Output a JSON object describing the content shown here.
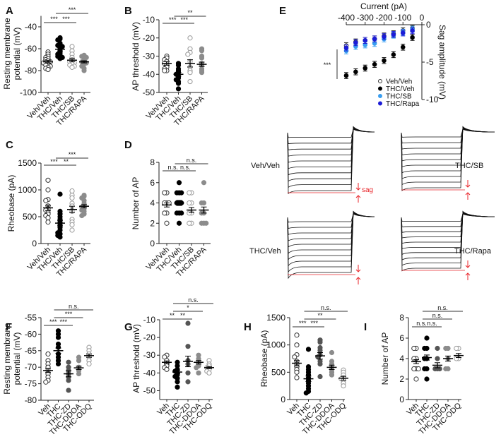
{
  "panel_letters": {
    "A": "A",
    "B": "B",
    "C": "C",
    "D": "D",
    "E": "E",
    "F": "F",
    "G": "G",
    "H": "H",
    "I": "I"
  },
  "chart_data": [
    {
      "id": "A",
      "type": "scatter",
      "ylabel": [
        "Resting membrane",
        "potential (mV)"
      ],
      "ylim": [
        -100,
        -30
      ],
      "yticks": [
        -40,
        -60,
        -80,
        -100
      ],
      "categories": [
        "Veh/Veh",
        "THC/Veh",
        "THC/SB",
        "THC/RAPA"
      ],
      "groups": [
        {
          "style": "open",
          "color": "#333333",
          "points": [
            -63,
            -65,
            -67,
            -68,
            -69,
            -70,
            -71,
            -72,
            -72,
            -73,
            -74,
            -75,
            -76,
            -77,
            -78,
            -79
          ],
          "mean": -72,
          "sem": 1.2
        },
        {
          "style": "filled",
          "color": "#000000",
          "points": [
            -50,
            -51,
            -52,
            -55,
            -56,
            -57,
            -58,
            -60,
            -62,
            -64,
            -65,
            -66,
            -67,
            -68,
            -69
          ],
          "mean": -60.5,
          "sem": 1.6
        },
        {
          "style": "open",
          "color": "#999999",
          "points": [
            -58,
            -62,
            -65,
            -68,
            -70,
            -71,
            -72,
            -73,
            -74,
            -75,
            -76,
            -77
          ],
          "mean": -70.5,
          "sem": 1.5
        },
        {
          "style": "filled",
          "color": "#8c8c8c",
          "points": [
            -66,
            -67,
            -68,
            -70,
            -71,
            -72,
            -73,
            -74,
            -76,
            -78,
            -80
          ],
          "mean": -72,
          "sem": 1
        }
      ],
      "significance": [
        {
          "from": 0,
          "to": 1,
          "label": "***",
          "level": 0
        },
        {
          "from": 1,
          "to": 2,
          "label": "***",
          "level": 0
        },
        {
          "from": 1,
          "to": 3,
          "label": "***",
          "level": 1
        }
      ]
    },
    {
      "id": "B",
      "type": "scatter",
      "ylabel": [
        "AP threshold (mV)"
      ],
      "ylim": [
        -50,
        -10
      ],
      "yticks": [
        -10,
        -20,
        -30,
        -40,
        -50
      ],
      "categories": [
        "Veh/Veh",
        "THC/Veh",
        "THC/SB",
        "THC/RAPA"
      ],
      "groups": [
        {
          "style": "open",
          "color": "#333333",
          "points": [
            -30,
            -31,
            -32,
            -33,
            -34,
            -35,
            -36,
            -37,
            -38,
            -38
          ],
          "mean": -34,
          "sem": 1
        },
        {
          "style": "filled",
          "color": "#000000",
          "points": [
            -34,
            -35,
            -37,
            -38,
            -39,
            -40,
            -41,
            -42,
            -43,
            -44,
            -45,
            -48
          ],
          "mean": -40,
          "sem": 1
        },
        {
          "style": "open",
          "color": "#999999",
          "points": [
            -20,
            -26,
            -28,
            -29,
            -33,
            -36,
            -38,
            -39,
            -44
          ],
          "mean": -34,
          "sem": 2
        },
        {
          "style": "filled",
          "color": "#8c8c8c",
          "points": [
            -26,
            -27,
            -30,
            -31,
            -34,
            -35,
            -37,
            -38,
            -39
          ],
          "mean": -34.5,
          "sem": 1.2
        }
      ],
      "significance": [
        {
          "from": 0,
          "to": 1,
          "label": "***",
          "level": 0
        },
        {
          "from": 1,
          "to": 2,
          "label": "***",
          "level": 0
        },
        {
          "from": 1,
          "to": 3,
          "label": "**",
          "level": 1
        }
      ]
    },
    {
      "id": "C",
      "type": "scatter",
      "ylabel": [
        "Rheobase (pA)"
      ],
      "ylim": [
        0,
        1500
      ],
      "yticks": [
        0,
        500,
        1000,
        1500
      ],
      "categories": [
        "Veh/Veh",
        "THC/Veh",
        "THC/SB",
        "THC/RAPA"
      ],
      "groups": [
        {
          "style": "open",
          "color": "#333333",
          "points": [
            1180,
            1000,
            820,
            800,
            700,
            650,
            620,
            580,
            550,
            520,
            480,
            400
          ],
          "mean": 665,
          "sem": 50
        },
        {
          "style": "filled",
          "color": "#000000",
          "points": [
            920,
            600,
            550,
            500,
            450,
            400,
            350,
            300,
            250,
            200,
            180,
            150,
            120
          ],
          "mean": 380,
          "sem": 50
        },
        {
          "style": "open",
          "color": "#999999",
          "points": [
            980,
            900,
            850,
            750,
            700,
            620,
            600,
            450,
            400,
            350,
            250
          ],
          "mean": 635,
          "sem": 60
        },
        {
          "style": "filled",
          "color": "#8c8c8c",
          "points": [
            900,
            880,
            850,
            800,
            750,
            700,
            680,
            650,
            620,
            600,
            550,
            520
          ],
          "mean": 695,
          "sem": 30
        }
      ],
      "significance": [
        {
          "from": 0,
          "to": 1,
          "label": "***",
          "level": 0
        },
        {
          "from": 1,
          "to": 2,
          "label": "**",
          "level": 0
        },
        {
          "from": 1,
          "to": 3,
          "label": "***",
          "level": 1
        }
      ]
    },
    {
      "id": "D",
      "type": "scatter",
      "ylabel": [
        "Number of AP"
      ],
      "ylim": [
        0,
        8
      ],
      "yticks": [
        0,
        2,
        4,
        6,
        8
      ],
      "categories": [
        "Veh/Veh",
        "THC/Veh",
        "THC/SB",
        "THC/RAPA"
      ],
      "groups": [
        {
          "style": "open",
          "color": "#333333",
          "points": [
            5,
            5,
            4,
            4,
            4,
            3,
            3,
            2
          ],
          "mean": 3.8,
          "sem": 0.2
        },
        {
          "style": "filled",
          "color": "#000000",
          "points": [
            6,
            5,
            5,
            5,
            4,
            4,
            4,
            3,
            3,
            3,
            2
          ],
          "mean": 4.0,
          "sem": 0.25
        },
        {
          "style": "open",
          "color": "#999999",
          "points": [
            5,
            5,
            4,
            4,
            3,
            3,
            2,
            2
          ],
          "mean": 3.3,
          "sem": 0.25
        },
        {
          "style": "filled",
          "color": "#8c8c8c",
          "points": [
            6,
            4,
            4,
            3,
            3,
            2,
            2,
            2
          ],
          "mean": 3.3,
          "sem": 0.3
        }
      ],
      "significance": [
        {
          "from": 0,
          "to": 1,
          "label": "n.s.",
          "level": 0
        },
        {
          "from": 1,
          "to": 2,
          "label": "n.s.",
          "level": 0
        },
        {
          "from": 1,
          "to": 3,
          "label": "n.s.",
          "level": 1
        }
      ]
    },
    {
      "id": "E",
      "type": "scatter",
      "xlabel": "Current (pA)",
      "ylabel": "Sag amplitude (mV)",
      "xlim": [
        -400,
        0
      ],
      "ylim": [
        -10,
        0
      ],
      "xticks": [
        -400,
        -300,
        -200,
        -100,
        0
      ],
      "yticks": [
        0,
        -5,
        -10
      ],
      "x": [
        -400,
        -350,
        -300,
        -250,
        -200,
        -150,
        -100,
        -50
      ],
      "series": [
        {
          "name": "Veh/Veh",
          "style": "open",
          "color": "#333333",
          "values": [
            -2.8,
            -2.3,
            -2.1,
            -1.9,
            -1.5,
            -1.2,
            -0.8,
            -0.5
          ],
          "sem": 0.4
        },
        {
          "name": "THC/Veh",
          "style": "filled",
          "color": "#000000",
          "values": [
            -6.8,
            -6.3,
            -5.8,
            -5.3,
            -4.8,
            -4.0,
            -3.0,
            -1.7
          ],
          "sem": 0.4
        },
        {
          "name": "THC/SB",
          "style": "filled",
          "color": "#3a9ef0",
          "values": [
            -3.5,
            -2.9,
            -2.7,
            -2.5,
            -1.9,
            -1.4,
            -1.0,
            -0.6
          ],
          "sem": 0.4
        },
        {
          "name": "THC/Rapa",
          "style": "filled",
          "color": "#1c1cd6",
          "values": [
            -3.1,
            -2.4,
            -2.1,
            -1.9,
            -1.6,
            -1.3,
            -1.1,
            -0.8
          ],
          "sem": 0.4
        }
      ],
      "significance": [
        {
          "label": "***"
        }
      ],
      "legend": "bottom-right"
    },
    {
      "id": "F",
      "type": "scatter",
      "ylabel": [
        "Resting membrane",
        "potential (mV)"
      ],
      "ylim": [
        -80,
        -55
      ],
      "yticks": [
        -55,
        -60,
        -65,
        -70,
        -75,
        -80
      ],
      "categories": [
        "Veh",
        "THC",
        "THC-ZD",
        "THC-DDOA",
        "THC-ODQ"
      ],
      "groups": [
        {
          "style": "open",
          "color": "#333333",
          "points": [
            -66,
            -68,
            -69,
            -70,
            -71,
            -72,
            -73,
            -74,
            -74.5
          ],
          "mean": -71,
          "sem": 0.6
        },
        {
          "style": "filled",
          "color": "#000000",
          "points": [
            -59,
            -60,
            -61,
            -63,
            -64,
            -66,
            -67,
            -68,
            -69
          ],
          "mean": -65,
          "sem": 0.8
        },
        {
          "style": "filled",
          "color": "#555555",
          "points": [
            -68.5,
            -70,
            -71,
            -72,
            -73,
            -74,
            -77
          ],
          "mean": -72,
          "sem": 0.9
        },
        {
          "style": "filled",
          "color": "#8c8c8c",
          "points": [
            -67,
            -68,
            -70,
            -71,
            -72
          ],
          "mean": -70.2,
          "sem": 0.5
        },
        {
          "style": "open",
          "color": "#999999",
          "points": [
            -64,
            -65,
            -66,
            -67,
            -68,
            -69
          ],
          "mean": -66.5,
          "sem": 0.5
        }
      ],
      "significance": [
        {
          "from": 0,
          "to": 1,
          "label": "***",
          "level": 0
        },
        {
          "from": 1,
          "to": 2,
          "label": "***",
          "level": 0
        },
        {
          "from": 1,
          "to": 3,
          "label": "***",
          "level": 1
        },
        {
          "from": 1,
          "to": 4,
          "label": "n.s.",
          "level": 2
        }
      ]
    },
    {
      "id": "G",
      "type": "scatter",
      "ylabel": [
        "AP threshold (mV)"
      ],
      "ylim": [
        -55,
        -10
      ],
      "yticks": [
        -10,
        -20,
        -30,
        -40,
        -50
      ],
      "categories": [
        "Veh",
        "THC",
        "THC-ZD",
        "THC-DDOA",
        "THC-ODQ"
      ],
      "groups": [
        {
          "style": "open",
          "color": "#333333",
          "points": [
            -30,
            -31,
            -33,
            -35,
            -36,
            -37,
            -38
          ],
          "mean": -34,
          "sem": 0.8
        },
        {
          "style": "filled",
          "color": "#000000",
          "points": [
            -34,
            -36,
            -38,
            -39,
            -40,
            -41,
            -42,
            -43,
            -45,
            -48
          ],
          "mean": -39.5,
          "sem": 0.9
        },
        {
          "style": "filled",
          "color": "#555555",
          "points": [
            -12,
            -25,
            -33,
            -35,
            -40,
            -45
          ],
          "mean": -33.5,
          "sem": 3
        },
        {
          "style": "filled",
          "color": "#8c8c8c",
          "points": [
            -30,
            -32,
            -34,
            -35,
            -36,
            -37,
            -40
          ],
          "mean": -34,
          "sem": 1
        },
        {
          "style": "open",
          "color": "#999999",
          "points": [
            -33,
            -35,
            -36,
            -37,
            -38,
            -39,
            -40
          ],
          "mean": -37,
          "sem": 0.6
        }
      ],
      "significance": [
        {
          "from": 0,
          "to": 1,
          "label": "**",
          "level": 0
        },
        {
          "from": 1,
          "to": 2,
          "label": "**",
          "level": 0
        },
        {
          "from": 1,
          "to": 3,
          "label": "*",
          "level": 1
        },
        {
          "from": 1,
          "to": 4,
          "label": "n.s.",
          "level": 2
        }
      ]
    },
    {
      "id": "H",
      "type": "scatter",
      "ylabel": [
        "Rheobase (pA)"
      ],
      "ylim": [
        0,
        1500
      ],
      "yticks": [
        0,
        500,
        1000,
        1500
      ],
      "categories": [
        "Veh",
        "THC",
        "THC-ZD",
        "THC-DDOA",
        "THC-ODQ"
      ],
      "groups": [
        {
          "style": "open",
          "color": "#333333",
          "points": [
            1180,
            1000,
            820,
            780,
            700,
            650,
            600,
            550,
            500,
            400
          ],
          "mean": 665,
          "sem": 50
        },
        {
          "style": "filled",
          "color": "#000000",
          "points": [
            920,
            600,
            550,
            500,
            450,
            400,
            350,
            300,
            250,
            200,
            150,
            120
          ],
          "mean": 380,
          "sem": 50
        },
        {
          "style": "filled",
          "color": "#555555",
          "points": [
            1090,
            1050,
            950,
            900,
            820,
            780,
            700,
            650,
            420
          ],
          "mean": 800,
          "sem": 60
        },
        {
          "style": "filled",
          "color": "#8c8c8c",
          "points": [
            860,
            700,
            650,
            600,
            550,
            500,
            450
          ],
          "mean": 590,
          "sem": 40
        },
        {
          "style": "open",
          "color": "#999999",
          "points": [
            540,
            500,
            450,
            400,
            380,
            350,
            300,
            250
          ],
          "mean": 390,
          "sem": 35
        }
      ],
      "significance": [
        {
          "from": 0,
          "to": 1,
          "label": "***",
          "level": 0
        },
        {
          "from": 1,
          "to": 2,
          "label": "***",
          "level": 0
        },
        {
          "from": 1,
          "to": 3,
          "label": "**",
          "level": 1
        },
        {
          "from": 1,
          "to": 4,
          "label": "n.s.",
          "level": 2
        }
      ]
    },
    {
      "id": "I",
      "type": "scatter",
      "ylabel": [
        "Number of AP"
      ],
      "ylim": [
        0,
        8
      ],
      "yticks": [
        0,
        2,
        4,
        6,
        8
      ],
      "categories": [
        "Veh",
        "THC",
        "THC-ZD",
        "THC-DDOA",
        "THC-ODQ"
      ],
      "groups": [
        {
          "style": "open",
          "color": "#333333",
          "points": [
            5,
            5,
            4,
            4,
            3,
            3,
            3,
            2
          ],
          "mean": 3.7,
          "sem": 0.2
        },
        {
          "style": "filled",
          "color": "#000000",
          "points": [
            6,
            5,
            5,
            4,
            4,
            3,
            3,
            2
          ],
          "mean": 4.1,
          "sem": 0.25
        },
        {
          "style": "filled",
          "color": "#555555",
          "points": [
            5,
            4,
            3,
            3,
            3
          ],
          "mean": 3.35,
          "sem": 0.25
        },
        {
          "style": "filled",
          "color": "#8c8c8c",
          "points": [
            5,
            5,
            4,
            3,
            3
          ],
          "mean": 4.0,
          "sem": 0.25
        },
        {
          "style": "open",
          "color": "#999999",
          "points": [
            5,
            5,
            4,
            4
          ],
          "mean": 4.3,
          "sem": 0.2
        }
      ],
      "significance": [
        {
          "from": 0,
          "to": 1,
          "label": "n.s.",
          "level": 0
        },
        {
          "from": 1,
          "to": 2,
          "label": "n.s.",
          "level": 0
        },
        {
          "from": 1,
          "to": 3,
          "label": "n.s.",
          "level": 1
        },
        {
          "from": 1,
          "to": 4,
          "label": "n.s.",
          "level": 2
        }
      ]
    }
  ],
  "traces": {
    "groups": [
      {
        "label": "Veh/Veh"
      },
      {
        "label": "THC/SB"
      },
      {
        "label": "THC/Veh"
      },
      {
        "label": "THC/Rapa"
      }
    ],
    "sag_label": "sag",
    "trace_color": "#111111",
    "marker_color": "#e8262b"
  }
}
